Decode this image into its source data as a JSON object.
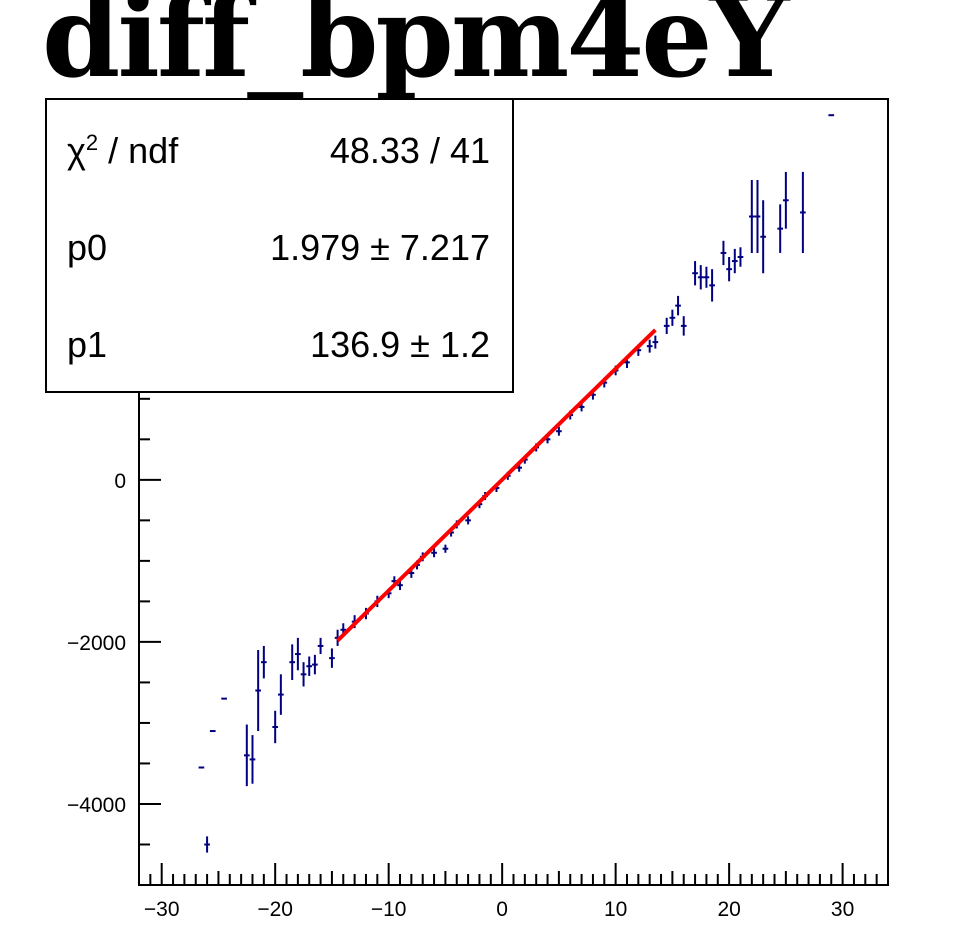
{
  "chart_data": {
    "type": "scatter",
    "title": "diff_bpm4eY",
    "xlabel": "",
    "ylabel": "",
    "xlim": [
      -32,
      34
    ],
    "ylim": [
      -5000,
      4700
    ],
    "x_ticks": [
      -30,
      -20,
      -10,
      0,
      10,
      20,
      30
    ],
    "x_tick_labels": [
      "−30",
      "−20",
      "−10",
      "0",
      "10",
      "20",
      "30"
    ],
    "y_ticks": [
      -4000,
      -2000,
      0
    ],
    "y_tick_labels": [
      "−4000",
      "−2000",
      "0"
    ],
    "grid": false,
    "series": [
      {
        "color": "#000080",
        "marker": "cross-with-errorbars",
        "points": [
          {
            "x": -26.5,
            "y": -3550,
            "ey": 0
          },
          {
            "x": -26.0,
            "y": -4500,
            "ey": 100
          },
          {
            "x": -25.5,
            "y": -3100,
            "ey": 0
          },
          {
            "x": -24.5,
            "y": -2700,
            "ey": 0
          },
          {
            "x": -22.5,
            "y": -3400,
            "ey": 380
          },
          {
            "x": -22.0,
            "y": -3450,
            "ey": 300
          },
          {
            "x": -21.5,
            "y": -2600,
            "ey": 500
          },
          {
            "x": -21.0,
            "y": -2250,
            "ey": 200
          },
          {
            "x": -20.0,
            "y": -3050,
            "ey": 200
          },
          {
            "x": -19.5,
            "y": -2650,
            "ey": 250
          },
          {
            "x": -18.5,
            "y": -2250,
            "ey": 220
          },
          {
            "x": -18.0,
            "y": -2150,
            "ey": 200
          },
          {
            "x": -17.5,
            "y": -2400,
            "ey": 150
          },
          {
            "x": -17.0,
            "y": -2300,
            "ey": 120
          },
          {
            "x": -16.5,
            "y": -2280,
            "ey": 120
          },
          {
            "x": -16.0,
            "y": -2050,
            "ey": 100
          },
          {
            "x": -15.0,
            "y": -2200,
            "ey": 120
          },
          {
            "x": -14.5,
            "y": -1950,
            "ey": 100
          },
          {
            "x": -14.0,
            "y": -1850,
            "ey": 80
          },
          {
            "x": -13.0,
            "y": -1750,
            "ey": 80
          },
          {
            "x": -12.0,
            "y": -1650,
            "ey": 70
          },
          {
            "x": -11.0,
            "y": -1500,
            "ey": 70
          },
          {
            "x": -10.0,
            "y": -1400,
            "ey": 60
          },
          {
            "x": -9.5,
            "y": -1250,
            "ey": 60
          },
          {
            "x": -9.0,
            "y": -1300,
            "ey": 60
          },
          {
            "x": -8.0,
            "y": -1150,
            "ey": 60
          },
          {
            "x": -7.5,
            "y": -1050,
            "ey": 55
          },
          {
            "x": -7.0,
            "y": -950,
            "ey": 55
          },
          {
            "x": -6.0,
            "y": -900,
            "ey": 55
          },
          {
            "x": -5.0,
            "y": -850,
            "ey": 50
          },
          {
            "x": -4.5,
            "y": -650,
            "ey": 50
          },
          {
            "x": -4.0,
            "y": -550,
            "ey": 50
          },
          {
            "x": -3.0,
            "y": -500,
            "ey": 50
          },
          {
            "x": -2.0,
            "y": -300,
            "ey": 50
          },
          {
            "x": -1.5,
            "y": -200,
            "ey": 50
          },
          {
            "x": -0.5,
            "y": -100,
            "ey": 50
          },
          {
            "x": 0.5,
            "y": 50,
            "ey": 50
          },
          {
            "x": 1.5,
            "y": 150,
            "ey": 50
          },
          {
            "x": 2.0,
            "y": 250,
            "ey": 50
          },
          {
            "x": 3.0,
            "y": 400,
            "ey": 50
          },
          {
            "x": 4.0,
            "y": 500,
            "ey": 50
          },
          {
            "x": 5.0,
            "y": 600,
            "ey": 55
          },
          {
            "x": 6.0,
            "y": 800,
            "ey": 55
          },
          {
            "x": 7.0,
            "y": 900,
            "ey": 55
          },
          {
            "x": 8.0,
            "y": 1050,
            "ey": 60
          },
          {
            "x": 9.0,
            "y": 1200,
            "ey": 60
          },
          {
            "x": 10.0,
            "y": 1350,
            "ey": 60
          },
          {
            "x": 11.0,
            "y": 1450,
            "ey": 70
          },
          {
            "x": 12.0,
            "y": 1600,
            "ey": 70
          },
          {
            "x": 13.0,
            "y": 1650,
            "ey": 80
          },
          {
            "x": 13.5,
            "y": 1700,
            "ey": 80
          },
          {
            "x": 14.5,
            "y": 1900,
            "ey": 100
          },
          {
            "x": 15.0,
            "y": 2000,
            "ey": 100
          },
          {
            "x": 15.5,
            "y": 2150,
            "ey": 120
          },
          {
            "x": 16.0,
            "y": 1900,
            "ey": 120
          },
          {
            "x": 17.0,
            "y": 2550,
            "ey": 150
          },
          {
            "x": 17.5,
            "y": 2500,
            "ey": 150
          },
          {
            "x": 18.0,
            "y": 2500,
            "ey": 130
          },
          {
            "x": 18.5,
            "y": 2400,
            "ey": 200
          },
          {
            "x": 19.5,
            "y": 2800,
            "ey": 150
          },
          {
            "x": 20.0,
            "y": 2600,
            "ey": 150
          },
          {
            "x": 20.5,
            "y": 2700,
            "ey": 150
          },
          {
            "x": 21.0,
            "y": 2750,
            "ey": 120
          },
          {
            "x": 22.0,
            "y": 3250,
            "ey": 450
          },
          {
            "x": 22.5,
            "y": 3250,
            "ey": 450
          },
          {
            "x": 23.0,
            "y": 3000,
            "ey": 450
          },
          {
            "x": 24.5,
            "y": 3100,
            "ey": 300
          },
          {
            "x": 25.0,
            "y": 3450,
            "ey": 350
          },
          {
            "x": 26.5,
            "y": 3300,
            "ey": 500
          },
          {
            "x": 29.0,
            "y": 4500,
            "ey": 0
          }
        ]
      }
    ],
    "fit": {
      "color": "#ff0000",
      "function": "pol1",
      "x_range": [
        -14.5,
        13.5
      ],
      "p0": 1.979,
      "p1": 136.9
    }
  },
  "stats": {
    "chi2_label": "χ",
    "chi2_sup": "2",
    "chi2_suffix": " / ndf",
    "chi2_value": "48.33 / 41",
    "p0_label": "p0",
    "p0_value": "1.979 ± 7.217",
    "p1_label": "p1",
    "p1_value": "136.9 ± 1.2"
  }
}
